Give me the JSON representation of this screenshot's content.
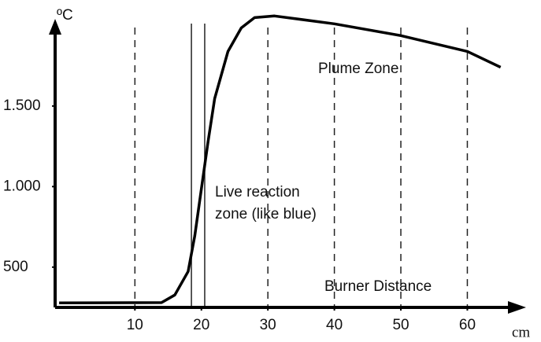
{
  "chart_data": {
    "type": "line",
    "y_unit": "ºC",
    "x_unit": "cm",
    "x": [
      -1.4,
      14,
      16,
      18,
      19,
      20,
      21,
      22,
      24,
      26,
      28,
      31,
      40,
      50,
      60,
      65
    ],
    "values": [
      278,
      280,
      327,
      473,
      693,
      985,
      1278,
      1546,
      1839,
      1985,
      2049,
      2059,
      2010,
      1937,
      1839,
      1741
    ],
    "color": "#000000",
    "xlim": [
      -2,
      68
    ],
    "xticks": [
      10,
      20,
      30,
      40,
      50,
      60
    ],
    "ylim": [
      250,
      2080
    ],
    "yticks": [
      {
        "value": 500,
        "label": "500"
      },
      {
        "value": 1000,
        "label": "1.000"
      },
      {
        "value": 1500,
        "label": "1.500"
      }
    ],
    "dashed_lines": [
      10,
      30,
      40,
      50,
      60
    ],
    "solid_lines": [
      18.5,
      20.5
    ],
    "annotations": [
      "Plume Zone",
      "Live reaction",
      "zone (like blue)",
      "Burner Distance"
    ]
  }
}
